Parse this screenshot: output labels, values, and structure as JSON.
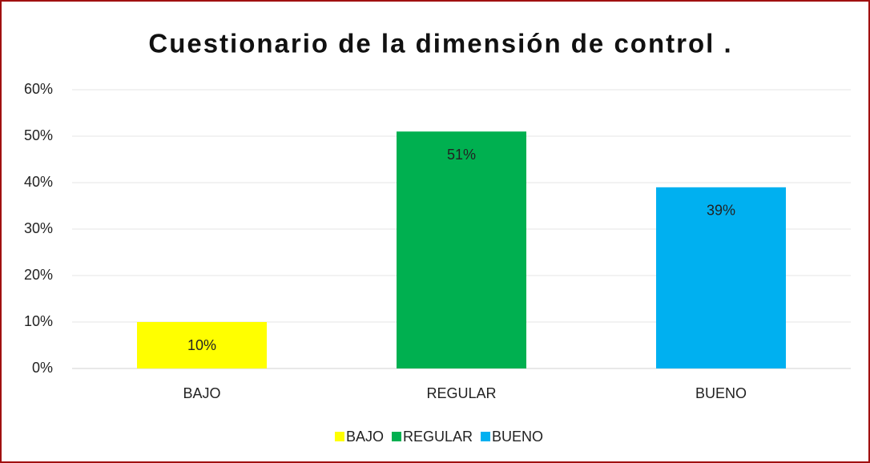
{
  "chart_data": {
    "type": "bar",
    "title": "Cuestionario de la dimensión de control .",
    "categories": [
      "BAJO",
      "REGULAR",
      "BUENO"
    ],
    "values": [
      10,
      51,
      39
    ],
    "value_labels": [
      "10%",
      "51%",
      "39%"
    ],
    "colors": [
      "#ffff00",
      "#00b050",
      "#00b0f0"
    ],
    "ylim": [
      0,
      60
    ],
    "yticks": [
      {
        "value": 0,
        "label": "0%"
      },
      {
        "value": 10,
        "label": "10%"
      },
      {
        "value": 20,
        "label": "20%"
      },
      {
        "value": 30,
        "label": "30%"
      },
      {
        "value": 40,
        "label": "40%"
      },
      {
        "value": 50,
        "label": "50%"
      },
      {
        "value": 60,
        "label": "60%"
      }
    ],
    "grid": true,
    "legend": "bottom"
  }
}
